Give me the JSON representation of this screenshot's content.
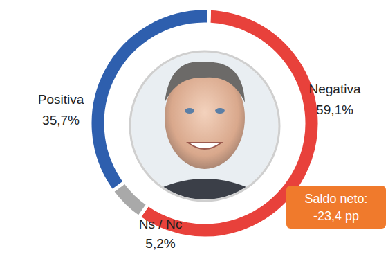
{
  "chart_data": {
    "type": "donut",
    "categories": [
      "Positiva",
      "Negativa",
      "Ns / Nc"
    ],
    "values": [
      35.7,
      59.1,
      5.2
    ],
    "value_labels": [
      "35,7%",
      "59,1%",
      "5,2%"
    ],
    "colors": [
      "#2e5fae",
      "#e8413b",
      "#a9a9a9"
    ],
    "data_labels": true,
    "annotation": [
      "Saldo neto:",
      "-23,4 pp"
    ]
  }
}
